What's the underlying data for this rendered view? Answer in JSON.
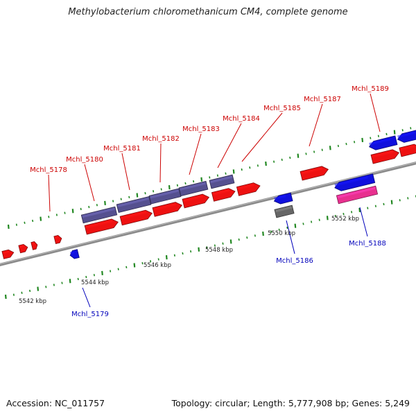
{
  "title": "Methylobacterium chloromethanicum CM4, complete genome",
  "footer": {
    "accession": "Accession: NC_011757",
    "summary": "Topology: circular; Length: 5,777,908 bp; Genes: 5,249"
  },
  "colors": {
    "forward_gene": "#ee1111",
    "reverse_gene": "#1010dd",
    "purple_gene": "#55508f",
    "pink_gene": "#e8308f",
    "gray_gene": "#666666",
    "tick": "#228822",
    "backbone": "#8a8a8a",
    "label_forward": "#cc0000",
    "label_reverse": "#0000bb"
  },
  "scale_labels": [
    "5542 kbp",
    "5544 kbp",
    "5546 kbp",
    "5548 kbp",
    "5550 kbp",
    "5552 kbp"
  ],
  "gene_labels": [
    {
      "id": "Mchl_5178",
      "strand": "forward"
    },
    {
      "id": "Mchl_5179",
      "strand": "reverse"
    },
    {
      "id": "Mchl_5180",
      "strand": "forward"
    },
    {
      "id": "Mchl_5181",
      "strand": "forward"
    },
    {
      "id": "Mchl_5182",
      "strand": "forward"
    },
    {
      "id": "Mchl_5183",
      "strand": "forward"
    },
    {
      "id": "Mchl_5184",
      "strand": "forward"
    },
    {
      "id": "Mchl_5185",
      "strand": "forward"
    },
    {
      "id": "Mchl_5186",
      "strand": "reverse"
    },
    {
      "id": "Mchl_5187",
      "strand": "forward"
    },
    {
      "id": "Mchl_5188",
      "strand": "reverse"
    },
    {
      "id": "Mchl_5189",
      "strand": "forward"
    }
  ]
}
